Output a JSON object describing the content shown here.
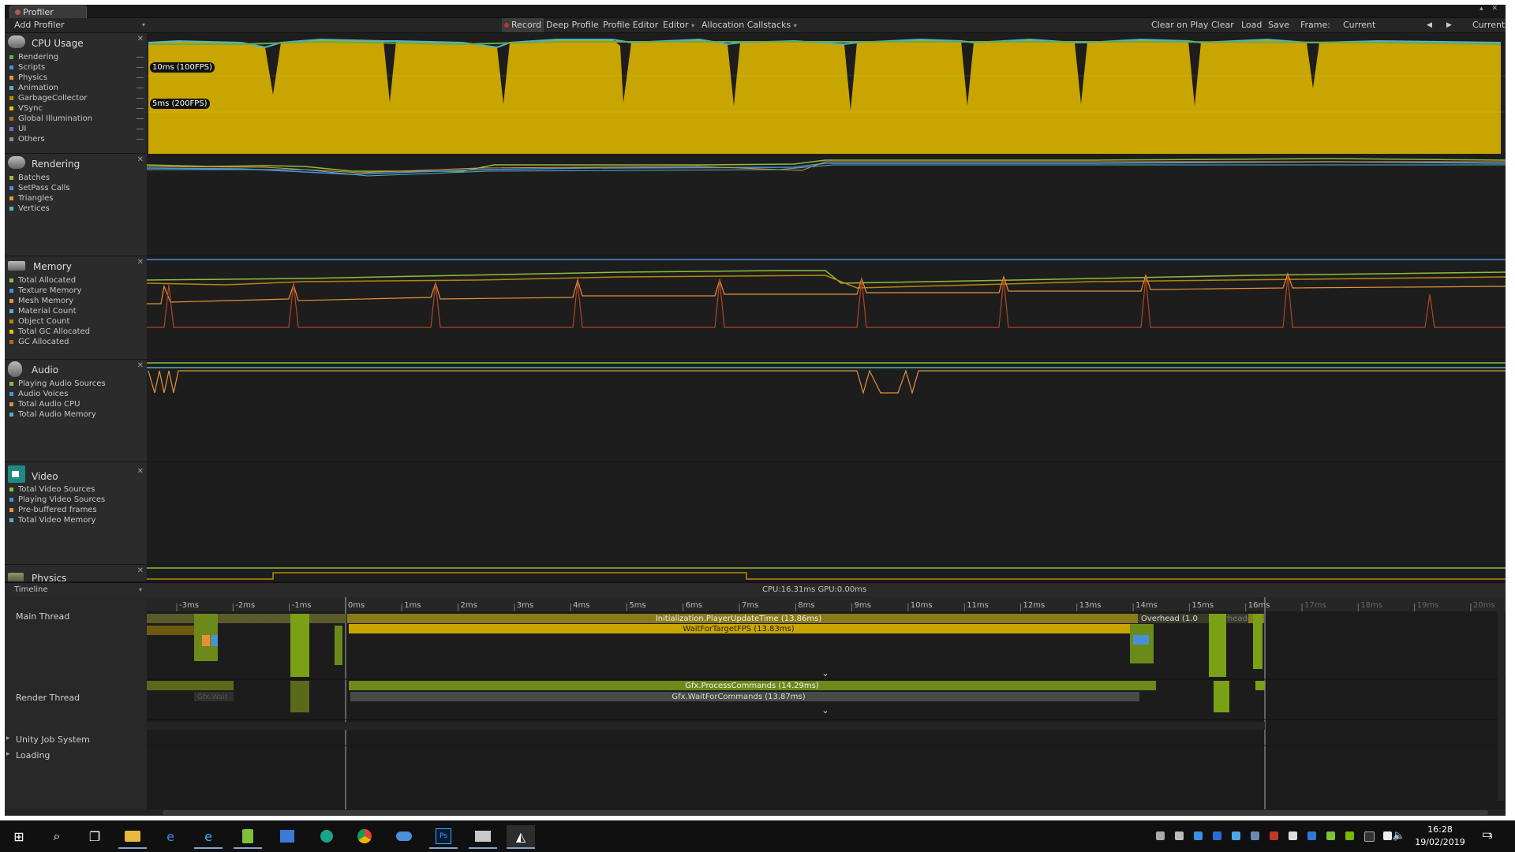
{
  "window": {
    "tab_label": "Profiler",
    "controls": "▴ ✕"
  },
  "toolbar": {
    "add_profiler": "Add Profiler",
    "record": "Record",
    "deep_profile": "Deep Profile",
    "profile_editor": "Profile Editor",
    "target": "Editor",
    "allocation_callstacks": "Allocation Callstacks",
    "clear_on_play": "Clear on Play",
    "clear": "Clear",
    "load": "Load",
    "save": "Save",
    "frame_label": "Frame:",
    "frame_value": "Current",
    "current": "Current",
    "prev_frame": "◀",
    "next_frame": "▶"
  },
  "modules": [
    {
      "name": "CPU Usage",
      "items": [
        "Rendering",
        "Scripts",
        "Physics",
        "Animation",
        "GarbageCollector",
        "VSync",
        "Global Illumination",
        "UI",
        "Others"
      ]
    },
    {
      "name": "Rendering",
      "items": [
        "Batches",
        "SetPass Calls",
        "Triangles",
        "Vertices"
      ]
    },
    {
      "name": "Memory",
      "items": [
        "Total Allocated",
        "Texture Memory",
        "Mesh Memory",
        "Material Count",
        "Object Count",
        "Total GC Allocated",
        "GC Allocated"
      ]
    },
    {
      "name": "Audio",
      "items": [
        "Playing Audio Sources",
        "Audio Voices",
        "Total Audio CPU",
        "Total Audio Memory"
      ]
    },
    {
      "name": "Video",
      "items": [
        "Total Video Sources",
        "Playing Video Sources",
        "Pre-buffered frames",
        "Total Video Memory"
      ]
    },
    {
      "name": "Physics",
      "items": []
    }
  ],
  "legend_colors": {
    "cpu": [
      "#6aa84f",
      "#4a90d9",
      "#e69138",
      "#4fb3c0",
      "#b8860b",
      "#e6c200",
      "#b5651d",
      "#7f5fbf",
      "#8a8a8a"
    ],
    "rendering": [
      "#8fbc3c",
      "#4a90d9",
      "#e69138",
      "#4fb3c0"
    ],
    "memory": [
      "#8fbc3c",
      "#4a90d9",
      "#e69138",
      "#4fb3c0",
      "#b8860b",
      "#e6c200",
      "#b5651d"
    ],
    "audio": [
      "#8fbc3c",
      "#4a90d9",
      "#e69138",
      "#4fb3c0"
    ],
    "video": [
      "#8fbc3c",
      "#4a90d9",
      "#e69138",
      "#4fb3c0"
    ]
  },
  "cpu_chart": {
    "label_10ms": "10ms (100FPS)",
    "label_5ms": "5ms (200FPS)"
  },
  "timeline": {
    "mode": "Timeline",
    "cpu_stat": "CPU:16.31ms",
    "gpu_stat": "GPU:0.00ms",
    "ticks": [
      "-3ms",
      "-2ms",
      "-1ms",
      "0ms",
      "1ms",
      "2ms",
      "3ms",
      "4ms",
      "5ms",
      "6ms",
      "7ms",
      "8ms",
      "9ms",
      "10ms",
      "11ms",
      "12ms",
      "13ms",
      "14ms",
      "15ms",
      "16ms",
      "17ms",
      "18ms",
      "19ms",
      "20ms"
    ],
    "threads": [
      "Main Thread",
      "Render Thread",
      "Unity Job System",
      "Loading"
    ],
    "markers": {
      "player_update": "Initialization.PlayerUpdateTime (13.86ms)",
      "wait_fps": "WaitForTargetFPS (13.83ms)",
      "overhead": "Overhead (1.0",
      "overhead_faded": "rhead",
      "overhead_prev": "Overhead (1.0",
      "process_cmds": "Gfx.ProcessCommands (14.29ms)",
      "wait_cmds": "Gfx.WaitForCommands (13.87ms)",
      "gfx_prev": "Gfx.Wait"
    }
  },
  "taskbar": {
    "apps": [
      "windows-start-icon",
      "search-icon",
      "task-view-icon",
      "file-explorer-icon",
      "edge-icon",
      "internet-explorer-icon",
      "utility-icon",
      "store-icon",
      "gitkraken-icon",
      "chrome-icon",
      "cloud-icon",
      "photoshop-icon",
      "mail-icon",
      "unity-icon"
    ],
    "time": "16:28",
    "date": "19/02/2019",
    "notifications": "3"
  }
}
